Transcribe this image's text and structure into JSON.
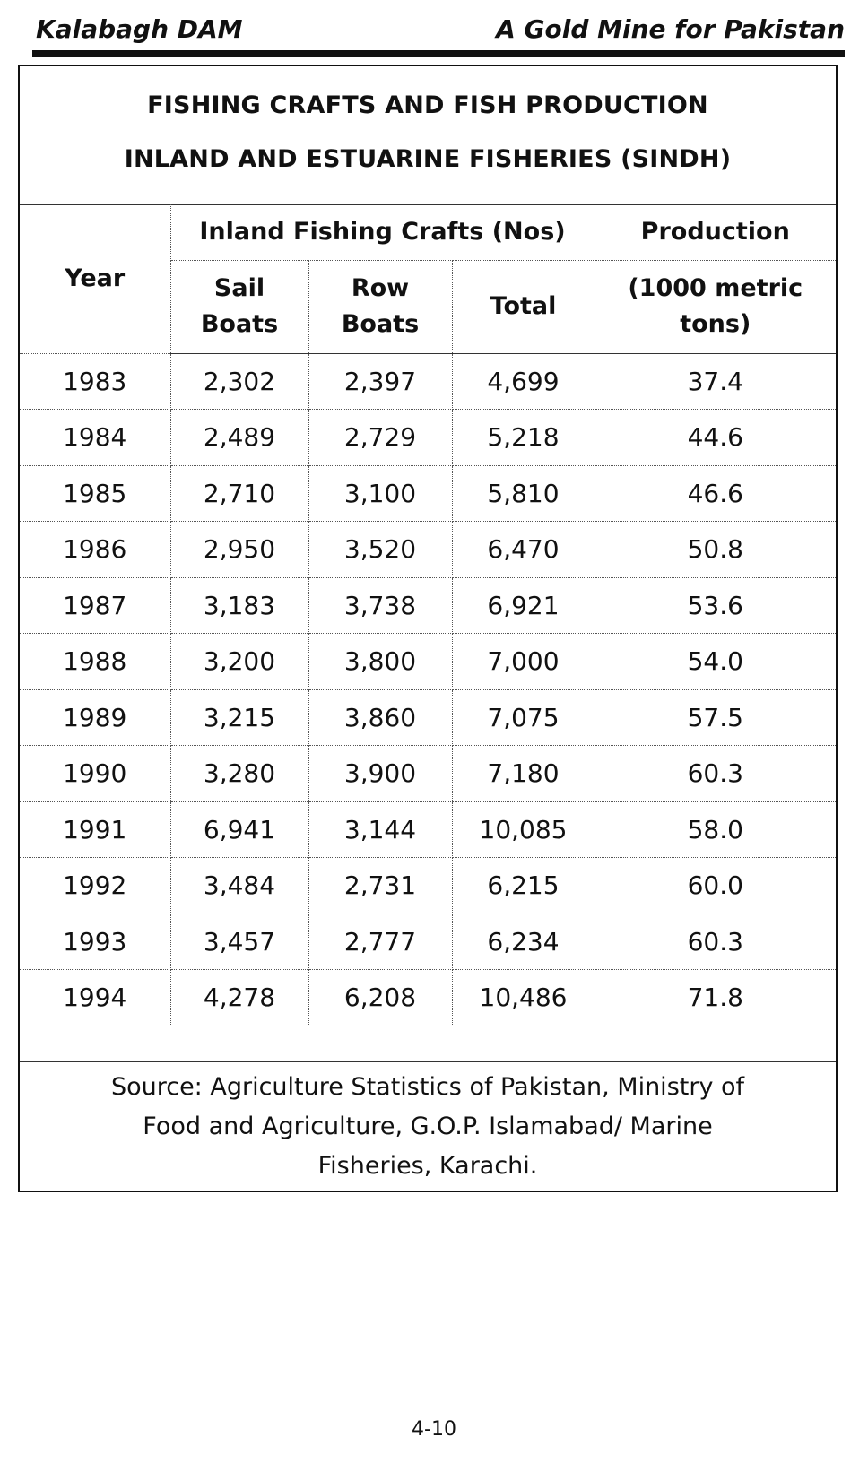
{
  "header": {
    "left": "Kalabagh DAM",
    "right": "A Gold Mine for Pakistan"
  },
  "title": {
    "line1": "FISHING CRAFTS AND FISH PRODUCTION",
    "line2": "INLAND AND ESTUARINE FISHERIES (SINDH)"
  },
  "table": {
    "headers": {
      "year": "Year",
      "crafts_group": "Inland Fishing Crafts (Nos)",
      "production_line1": "Production",
      "production_line2": "(1000 metric tons)",
      "sail_boats": "Sail Boats",
      "row_boats": "Row Boats",
      "total": "Total"
    },
    "rows": [
      {
        "year": "1983",
        "sail": "2,302",
        "row": "2,397",
        "total": "4,699",
        "production": "37.4"
      },
      {
        "year": "1984",
        "sail": "2,489",
        "row": "2,729",
        "total": "5,218",
        "production": "44.6"
      },
      {
        "year": "1985",
        "sail": "2,710",
        "row": "3,100",
        "total": "5,810",
        "production": "46.6"
      },
      {
        "year": "1986",
        "sail": "2,950",
        "row": "3,520",
        "total": "6,470",
        "production": "50.8"
      },
      {
        "year": "1987",
        "sail": "3,183",
        "row": "3,738",
        "total": "6,921",
        "production": "53.6"
      },
      {
        "year": "1988",
        "sail": "3,200",
        "row": "3,800",
        "total": "7,000",
        "production": "54.0"
      },
      {
        "year": "1989",
        "sail": "3,215",
        "row": "3,860",
        "total": "7,075",
        "production": "57.5"
      },
      {
        "year": "1990",
        "sail": "3,280",
        "row": "3,900",
        "total": "7,180",
        "production": "60.3"
      },
      {
        "year": "1991",
        "sail": "6,941",
        "row": "3,144",
        "total": "10,085",
        "production": "58.0"
      },
      {
        "year": "1992",
        "sail": "3,484",
        "row": "2,731",
        "total": "6,215",
        "production": "60.0"
      },
      {
        "year": "1993",
        "sail": "3,457",
        "row": "2,777",
        "total": "6,234",
        "production": "60.3"
      },
      {
        "year": "1994",
        "sail": "4,278",
        "row": "6,208",
        "total": "10,486",
        "production": "71.8"
      }
    ]
  },
  "source": {
    "line1": "Source: Agriculture Statistics of Pakistan, Ministry of",
    "line2": "Food and Agriculture, G.O.P. Islamabad/ Marine",
    "line3": "Fisheries, Karachi."
  },
  "page_number": "4-10"
}
